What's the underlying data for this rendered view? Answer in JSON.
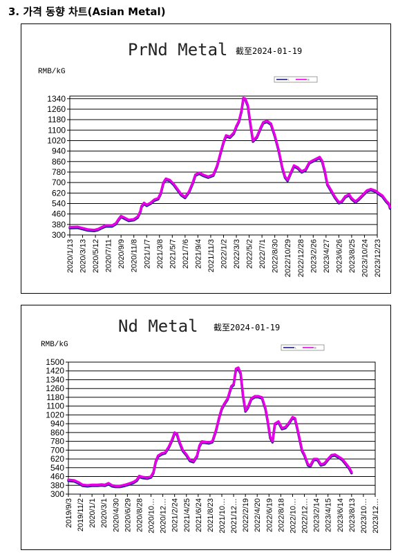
{
  "heading": "3. 가격 동향 차트(Asian Metal)",
  "colors": {
    "series_line": "#e600e6",
    "series_shadow": "#1a1a8c",
    "grid": "#000000"
  },
  "chart_data": [
    {
      "type": "line",
      "title": "PrNd Metal",
      "subtitle": "截至2024-01-19",
      "ylabel": "RMB/kG",
      "legend": [
        "L",
        "B"
      ],
      "legend_position": "top-right",
      "ylim": [
        300,
        1360
      ],
      "yticks": [
        "1340",
        "1260",
        "1180",
        "1100",
        "1020",
        "940",
        "860",
        "780",
        "700",
        "620",
        "540",
        "460",
        "380",
        "300"
      ],
      "xticks": [
        "2020/1/13",
        "2020/3/13",
        "2020/5/12",
        "2020/7/11",
        "2020/9/9",
        "2020/11/8",
        "2021/1/7",
        "2021/3/8",
        "2021/5/7",
        "2021/7/6",
        "2021/9/4",
        "2021/11/3",
        "2022/1/2",
        "2022/3/3",
        "2022/5/2",
        "2022/7/1",
        "2022/8/30",
        "2022/10/29",
        "2022/12/28",
        "2023/2/26",
        "2023/4/27",
        "2023/6/26",
        "2023/8/25",
        "2023/10/24",
        "2023/12/23"
      ],
      "grid": true,
      "series": [
        {
          "values": [
            [
              0,
              360
            ],
            [
              0.6,
              362
            ],
            [
              1.0,
              352
            ],
            [
              1.4,
              342
            ],
            [
              1.9,
              338
            ],
            [
              2.2,
              345
            ],
            [
              2.5,
              360
            ],
            [
              2.8,
              372
            ],
            [
              3.3,
              372
            ],
            [
              3.6,
              390
            ],
            [
              3.8,
              420
            ],
            [
              4.0,
              445
            ],
            [
              4.3,
              430
            ],
            [
              4.6,
              415
            ],
            [
              5.0,
              420
            ],
            [
              5.3,
              440
            ],
            [
              5.5,
              480
            ],
            [
              5.6,
              520
            ],
            [
              5.8,
              545
            ],
            [
              6.0,
              530
            ],
            [
              6.3,
              545
            ],
            [
              6.6,
              570
            ],
            [
              6.9,
              580
            ],
            [
              7.1,
              620
            ],
            [
              7.3,
              700
            ],
            [
              7.5,
              730
            ],
            [
              7.8,
              720
            ],
            [
              8.1,
              690
            ],
            [
              8.4,
              650
            ],
            [
              8.7,
              610
            ],
            [
              9.0,
              590
            ],
            [
              9.3,
              630
            ],
            [
              9.6,
              700
            ],
            [
              9.8,
              760
            ],
            [
              10.1,
              775
            ],
            [
              10.4,
              760
            ],
            [
              10.8,
              745
            ],
            [
              11.2,
              760
            ],
            [
              11.5,
              830
            ],
            [
              11.8,
              940
            ],
            [
              12.0,
              1010
            ],
            [
              12.2,
              1060
            ],
            [
              12.5,
              1050
            ],
            [
              12.8,
              1080
            ],
            [
              13.0,
              1130
            ],
            [
              13.2,
              1170
            ],
            [
              13.4,
              1250
            ],
            [
              13.55,
              1345
            ],
            [
              13.7,
              1340
            ],
            [
              13.9,
              1290
            ],
            [
              14.1,
              1150
            ],
            [
              14.3,
              1020
            ],
            [
              14.6,
              1050
            ],
            [
              14.9,
              1120
            ],
            [
              15.1,
              1160
            ],
            [
              15.4,
              1170
            ],
            [
              15.7,
              1150
            ],
            [
              16.0,
              1060
            ],
            [
              16.3,
              950
            ],
            [
              16.6,
              810
            ],
            [
              16.8,
              745
            ],
            [
              17.0,
              720
            ],
            [
              17.2,
              765
            ],
            [
              17.5,
              830
            ],
            [
              17.8,
              815
            ],
            [
              18.1,
              785
            ],
            [
              18.4,
              800
            ],
            [
              18.7,
              855
            ],
            [
              19.0,
              870
            ],
            [
              19.3,
              885
            ],
            [
              19.5,
              895
            ],
            [
              19.7,
              865
            ],
            [
              19.9,
              790
            ],
            [
              20.1,
              690
            ],
            [
              20.4,
              640
            ],
            [
              20.7,
              590
            ],
            [
              21.0,
              550
            ],
            [
              21.2,
              555
            ],
            [
              21.5,
              595
            ],
            [
              21.8,
              610
            ],
            [
              22.0,
              580
            ],
            [
              22.3,
              555
            ],
            [
              22.6,
              580
            ],
            [
              22.9,
              610
            ],
            [
              23.2,
              640
            ],
            [
              23.5,
              650
            ],
            [
              23.8,
              640
            ],
            [
              24.1,
              620
            ],
            [
              24.4,
              600
            ],
            [
              24.7,
              560
            ],
            [
              24.9,
              540
            ],
            [
              25.0,
              510
            ]
          ]
        }
      ]
    },
    {
      "type": "line",
      "title": "Nd Metal",
      "subtitle": "截至2024-01-19",
      "ylabel": "RMB/kG",
      "legend": [
        "L",
        "B"
      ],
      "legend_position": "top-right",
      "ylim": [
        300,
        1500
      ],
      "yticks": [
        "1500",
        "1420",
        "1340",
        "1260",
        "1180",
        "1100",
        "1020",
        "940",
        "860",
        "780",
        "700",
        "620",
        "540",
        "460",
        "380",
        "300"
      ],
      "xticks": [
        "2019/9/3",
        "2019/11/2",
        "2020/1/1",
        "2020/3/1",
        "2020/4/30",
        "2020/6/29",
        "2020/8/28",
        "2020/10…",
        "2020/12…",
        "2021/2/24",
        "2021/4/25",
        "2021/6/24",
        "2021/8/23",
        "2021/10…",
        "2021/12…",
        "2022/2/19",
        "2022/4/20",
        "2022/6/19",
        "2022/8/18",
        "2022/10…",
        "2022/12…",
        "2023/2/14",
        "2023/4/15",
        "2023/6/14",
        "2023/8/13",
        "2023/10…",
        "2023/12…"
      ],
      "grid": true,
      "series": [
        {
          "values": [
            [
              0,
              430
            ],
            [
              0.5,
              425
            ],
            [
              0.9,
              405
            ],
            [
              1.2,
              385
            ],
            [
              1.6,
              380
            ],
            [
              2.0,
              385
            ],
            [
              2.5,
              385
            ],
            [
              2.8,
              388
            ],
            [
              3.1,
              385
            ],
            [
              3.4,
              400
            ],
            [
              3.7,
              380
            ],
            [
              4.0,
              375
            ],
            [
              4.4,
              375
            ],
            [
              4.8,
              385
            ],
            [
              5.1,
              395
            ],
            [
              5.5,
              410
            ],
            [
              5.8,
              430
            ],
            [
              6.0,
              465
            ],
            [
              6.3,
              455
            ],
            [
              6.7,
              450
            ],
            [
              7.0,
              460
            ],
            [
              7.2,
              500
            ],
            [
              7.4,
              600
            ],
            [
              7.6,
              650
            ],
            [
              7.9,
              670
            ],
            [
              8.2,
              680
            ],
            [
              8.5,
              730
            ],
            [
              8.8,
              800
            ],
            [
              9.0,
              860
            ],
            [
              9.2,
              850
            ],
            [
              9.4,
              780
            ],
            [
              9.7,
              700
            ],
            [
              10.0,
              660
            ],
            [
              10.3,
              610
            ],
            [
              10.6,
              600
            ],
            [
              10.9,
              650
            ],
            [
              11.1,
              740
            ],
            [
              11.3,
              780
            ],
            [
              11.6,
              775
            ],
            [
              11.9,
              770
            ],
            [
              12.2,
              780
            ],
            [
              12.5,
              880
            ],
            [
              12.8,
              1010
            ],
            [
              13.0,
              1080
            ],
            [
              13.2,
              1120
            ],
            [
              13.5,
              1170
            ],
            [
              13.8,
              1280
            ],
            [
              14.0,
              1300
            ],
            [
              14.2,
              1440
            ],
            [
              14.4,
              1450
            ],
            [
              14.6,
              1400
            ],
            [
              14.8,
              1200
            ],
            [
              15.0,
              1060
            ],
            [
              15.2,
              1090
            ],
            [
              15.5,
              1170
            ],
            [
              15.8,
              1190
            ],
            [
              16.1,
              1190
            ],
            [
              16.4,
              1180
            ],
            [
              16.7,
              1080
            ],
            [
              16.9,
              960
            ],
            [
              17.1,
              820
            ],
            [
              17.3,
              780
            ],
            [
              17.5,
              940
            ],
            [
              17.8,
              960
            ],
            [
              18.1,
              900
            ],
            [
              18.4,
              910
            ],
            [
              18.7,
              950
            ],
            [
              19.0,
              1000
            ],
            [
              19.2,
              990
            ],
            [
              19.4,
              900
            ],
            [
              19.6,
              800
            ],
            [
              19.8,
              700
            ],
            [
              20.0,
              660
            ],
            [
              20.3,
              570
            ],
            [
              20.5,
              560
            ],
            [
              20.8,
              620
            ],
            [
              21.1,
              620
            ],
            [
              21.4,
              570
            ],
            [
              21.7,
              580
            ],
            [
              22.0,
              620
            ],
            [
              22.3,
              655
            ],
            [
              22.6,
              660
            ],
            [
              22.9,
              640
            ],
            [
              23.2,
              620
            ],
            [
              23.5,
              580
            ],
            [
              23.8,
              540
            ],
            [
              24.0,
              500
            ]
          ]
        }
      ]
    }
  ]
}
